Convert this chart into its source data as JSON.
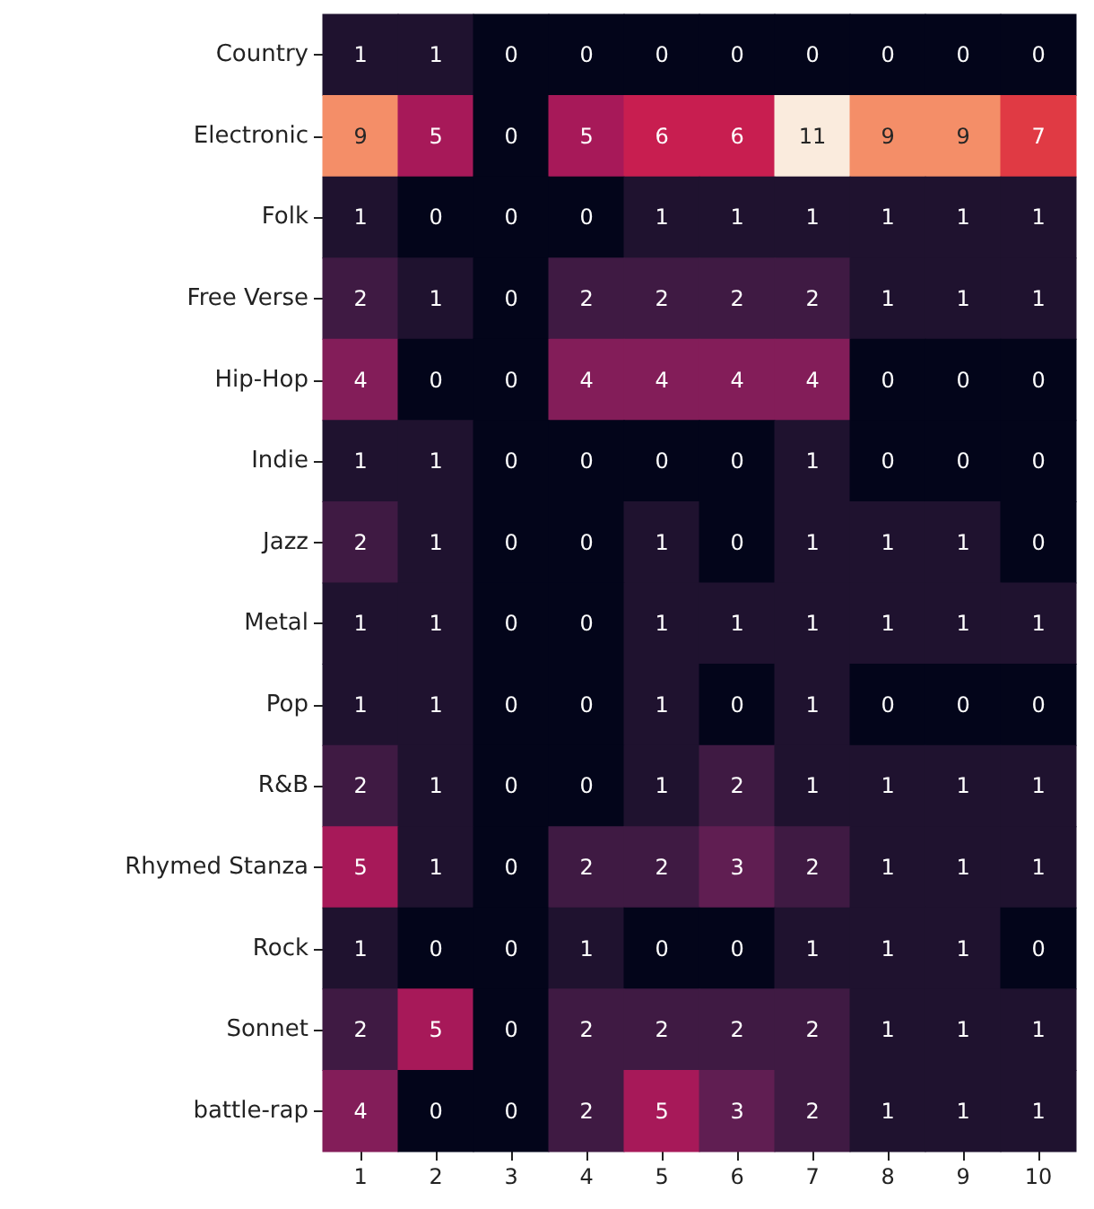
{
  "chart_data": {
    "type": "heatmap",
    "categories": [
      "1",
      "2",
      "3",
      "4",
      "5",
      "6",
      "7",
      "8",
      "9",
      "10"
    ],
    "y_categories": [
      "Country",
      "Electronic",
      "Folk",
      "Free Verse",
      "Hip-Hop",
      "Indie",
      "Jazz",
      "Metal",
      "Pop",
      "R&B",
      "Rhymed Stanza",
      "Rock",
      "Sonnet",
      "battle-rap"
    ],
    "cells": [
      [
        1,
        1,
        0,
        0,
        0,
        0,
        0,
        0,
        0,
        0
      ],
      [
        9,
        5,
        0,
        5,
        6,
        6,
        11,
        9,
        9,
        7
      ],
      [
        1,
        0,
        0,
        0,
        1,
        1,
        1,
        1,
        1,
        1
      ],
      [
        2,
        1,
        0,
        2,
        2,
        2,
        2,
        1,
        1,
        1
      ],
      [
        4,
        0,
        0,
        4,
        4,
        4,
        4,
        0,
        0,
        0
      ],
      [
        1,
        1,
        0,
        0,
        0,
        0,
        1,
        0,
        0,
        0
      ],
      [
        2,
        1,
        0,
        0,
        1,
        0,
        1,
        1,
        1,
        0
      ],
      [
        1,
        1,
        0,
        0,
        1,
        1,
        1,
        1,
        1,
        1
      ],
      [
        1,
        1,
        0,
        0,
        1,
        0,
        1,
        0,
        0,
        0
      ],
      [
        2,
        1,
        0,
        0,
        1,
        2,
        1,
        1,
        1,
        1
      ],
      [
        5,
        1,
        0,
        2,
        2,
        3,
        2,
        1,
        1,
        1
      ],
      [
        1,
        0,
        0,
        1,
        0,
        0,
        1,
        1,
        1,
        0
      ],
      [
        2,
        5,
        0,
        2,
        2,
        2,
        2,
        1,
        1,
        1
      ],
      [
        4,
        0,
        0,
        2,
        5,
        3,
        2,
        1,
        1,
        1
      ]
    ],
    "data_labels": true
  }
}
